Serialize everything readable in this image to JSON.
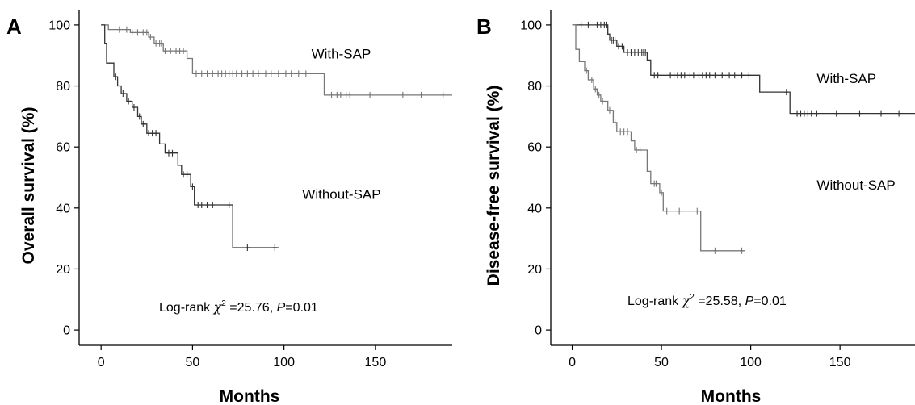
{
  "chart_data": [
    {
      "type": "line",
      "panel": "A",
      "xlabel": "Months",
      "ylabel": "Overall survival (%)",
      "xlim": [
        -12,
        192
      ],
      "ylim": [
        -5,
        105
      ],
      "xticks": [
        0,
        50,
        100,
        150
      ],
      "yticks": [
        0,
        20,
        40,
        60,
        80,
        100
      ],
      "grid": false,
      "stat_parts": {
        "prefix": "Log-rank ",
        "chi": "χ",
        "sup": "2",
        "value": " =25.76, ",
        "p": "P",
        "pvalue": "=0.01"
      },
      "series": [
        {
          "name": "With-SAP",
          "color": "#777777",
          "steps": [
            [
              0,
              100
            ],
            [
              4,
              100
            ],
            [
              4,
              98.5
            ],
            [
              16,
              98.5
            ],
            [
              16,
              97.5
            ],
            [
              26,
              97.5
            ],
            [
              26,
              96
            ],
            [
              29,
              96
            ],
            [
              29,
              94
            ],
            [
              34,
              94
            ],
            [
              34,
              91.5
            ],
            [
              47,
              91.5
            ],
            [
              47,
              89
            ],
            [
              50,
              89
            ],
            [
              50,
              84
            ],
            [
              122,
              84
            ],
            [
              122,
              77
            ],
            [
              192,
              77
            ]
          ],
          "censored": [
            [
              10,
              98.5
            ],
            [
              14,
              98.5
            ],
            [
              17,
              97.5
            ],
            [
              20,
              97.5
            ],
            [
              23,
              97.5
            ],
            [
              25,
              97.5
            ],
            [
              27,
              96
            ],
            [
              30,
              94
            ],
            [
              32,
              94
            ],
            [
              33,
              94
            ],
            [
              35,
              91.5
            ],
            [
              38,
              91.5
            ],
            [
              41,
              91.5
            ],
            [
              43,
              91.5
            ],
            [
              45,
              91.5
            ],
            [
              52,
              84
            ],
            [
              55,
              84
            ],
            [
              58,
              84
            ],
            [
              61,
              84
            ],
            [
              64,
              84
            ],
            [
              66,
              84
            ],
            [
              68,
              84
            ],
            [
              70,
              84
            ],
            [
              72,
              84
            ],
            [
              74,
              84
            ],
            [
              77,
              84
            ],
            [
              80,
              84
            ],
            [
              83,
              84
            ],
            [
              86,
              84
            ],
            [
              90,
              84
            ],
            [
              93,
              84
            ],
            [
              97,
              84
            ],
            [
              101,
              84
            ],
            [
              104,
              84
            ],
            [
              108,
              84
            ],
            [
              112,
              84
            ],
            [
              126,
              77
            ],
            [
              129,
              77
            ],
            [
              131,
              77
            ],
            [
              134,
              77
            ],
            [
              136,
              77
            ],
            [
              147,
              77
            ],
            [
              165,
              77
            ],
            [
              175,
              77
            ],
            [
              187,
              77
            ]
          ]
        },
        {
          "name": "Without-SAP",
          "color": "#333333",
          "steps": [
            [
              0,
              100
            ],
            [
              2,
              100
            ],
            [
              2,
              94
            ],
            [
              3,
              94
            ],
            [
              3,
              87.5
            ],
            [
              7,
              87.5
            ],
            [
              7,
              83
            ],
            [
              9,
              83
            ],
            [
              9,
              80
            ],
            [
              11,
              80
            ],
            [
              11,
              77.5
            ],
            [
              14,
              77.5
            ],
            [
              14,
              75
            ],
            [
              17,
              75
            ],
            [
              17,
              73
            ],
            [
              20,
              73
            ],
            [
              20,
              70
            ],
            [
              22,
              70
            ],
            [
              22,
              67.5
            ],
            [
              25,
              67.5
            ],
            [
              25,
              64.5
            ],
            [
              32,
              64.5
            ],
            [
              32,
              61
            ],
            [
              35,
              61
            ],
            [
              35,
              58
            ],
            [
              42,
              58
            ],
            [
              42,
              54
            ],
            [
              44,
              54
            ],
            [
              44,
              51
            ],
            [
              49,
              51
            ],
            [
              49,
              47
            ],
            [
              51,
              47
            ],
            [
              51,
              41
            ],
            [
              72,
              41
            ],
            [
              72,
              27
            ],
            [
              97,
              27
            ]
          ],
          "censored": [
            [
              8,
              83
            ],
            [
              12,
              77.5
            ],
            [
              15,
              75
            ],
            [
              18,
              73
            ],
            [
              21,
              70
            ],
            [
              23,
              67.5
            ],
            [
              26,
              64.5
            ],
            [
              28,
              64.5
            ],
            [
              30,
              64.5
            ],
            [
              37,
              58
            ],
            [
              39,
              58
            ],
            [
              45,
              51
            ],
            [
              47,
              51
            ],
            [
              50,
              47
            ],
            [
              53,
              41
            ],
            [
              55,
              41
            ],
            [
              58,
              41
            ],
            [
              61,
              41
            ],
            [
              70,
              41
            ],
            [
              80,
              27
            ],
            [
              95,
              27
            ]
          ]
        }
      ],
      "labels": [
        {
          "text": "With-SAP",
          "at": [
            115,
            89
          ]
        },
        {
          "text": "Without-SAP",
          "at": [
            110,
            43
          ]
        }
      ]
    },
    {
      "type": "line",
      "panel": "B",
      "xlabel": "Months",
      "ylabel": "Disease-free survival (%)",
      "xlim": [
        -12,
        192
      ],
      "ylim": [
        -5,
        105
      ],
      "xticks": [
        0,
        50,
        100,
        150
      ],
      "yticks": [
        0,
        20,
        40,
        60,
        80,
        100
      ],
      "grid": false,
      "stat_parts": {
        "prefix": "Log-rank ",
        "chi": "χ",
        "sup": "2",
        "value": " =25.58, ",
        "p": "P",
        "pvalue": "=0.01"
      },
      "series": [
        {
          "name": "With-SAP",
          "color": "#333333",
          "steps": [
            [
              0,
              100
            ],
            [
              20,
              100
            ],
            [
              20,
              97
            ],
            [
              21,
              97
            ],
            [
              21,
              95
            ],
            [
              25,
              95
            ],
            [
              25,
              93
            ],
            [
              29,
              93
            ],
            [
              29,
              91
            ],
            [
              42,
              91
            ],
            [
              42,
              88.5
            ],
            [
              44,
              88.5
            ],
            [
              44,
              83.5
            ],
            [
              105,
              83.5
            ],
            [
              105,
              78
            ],
            [
              122,
              78
            ],
            [
              122,
              71
            ],
            [
              192,
              71
            ]
          ],
          "censored": [
            [
              5,
              100
            ],
            [
              9,
              100
            ],
            [
              14,
              100
            ],
            [
              16,
              100
            ],
            [
              18,
              100
            ],
            [
              19,
              100
            ],
            [
              22,
              95
            ],
            [
              23,
              95
            ],
            [
              24,
              95
            ],
            [
              26,
              93
            ],
            [
              28,
              93
            ],
            [
              31,
              91
            ],
            [
              33,
              91
            ],
            [
              35,
              91
            ],
            [
              37,
              91
            ],
            [
              39,
              91
            ],
            [
              40,
              91
            ],
            [
              41,
              91
            ],
            [
              46,
              83.5
            ],
            [
              48,
              83.5
            ],
            [
              55,
              83.5
            ],
            [
              57,
              83.5
            ],
            [
              59,
              83.5
            ],
            [
              61,
              83.5
            ],
            [
              63,
              83.5
            ],
            [
              66,
              83.5
            ],
            [
              68,
              83.5
            ],
            [
              71,
              83.5
            ],
            [
              73,
              83.5
            ],
            [
              75,
              83.5
            ],
            [
              77,
              83.5
            ],
            [
              80,
              83.5
            ],
            [
              84,
              83.5
            ],
            [
              88,
              83.5
            ],
            [
              91,
              83.5
            ],
            [
              95,
              83.5
            ],
            [
              99,
              83.5
            ],
            [
              120,
              78
            ],
            [
              126,
              71
            ],
            [
              128,
              71
            ],
            [
              130,
              71
            ],
            [
              132,
              71
            ],
            [
              134,
              71
            ],
            [
              137,
              71
            ],
            [
              148,
              71
            ],
            [
              161,
              71
            ],
            [
              173,
              71
            ],
            [
              183,
              71
            ]
          ]
        },
        {
          "name": "Without-SAP",
          "color": "#777777",
          "steps": [
            [
              0,
              100
            ],
            [
              2,
              100
            ],
            [
              2,
              92
            ],
            [
              4,
              92
            ],
            [
              4,
              88
            ],
            [
              7,
              88
            ],
            [
              7,
              85
            ],
            [
              9,
              85
            ],
            [
              9,
              82
            ],
            [
              12,
              82
            ],
            [
              12,
              79
            ],
            [
              14,
              79
            ],
            [
              14,
              77
            ],
            [
              16,
              77
            ],
            [
              16,
              75
            ],
            [
              20,
              75
            ],
            [
              20,
              72
            ],
            [
              23,
              72
            ],
            [
              23,
              68
            ],
            [
              25,
              68
            ],
            [
              25,
              65
            ],
            [
              33,
              65
            ],
            [
              33,
              62
            ],
            [
              35,
              62
            ],
            [
              35,
              59
            ],
            [
              42,
              59
            ],
            [
              42,
              52
            ],
            [
              44,
              52
            ],
            [
              44,
              48
            ],
            [
              49,
              48
            ],
            [
              49,
              45
            ],
            [
              51,
              45
            ],
            [
              51,
              39
            ],
            [
              72,
              39
            ],
            [
              72,
              26
            ],
            [
              97,
              26
            ]
          ],
          "censored": [
            [
              8,
              85
            ],
            [
              11,
              82
            ],
            [
              13,
              79
            ],
            [
              15,
              77
            ],
            [
              17,
              75
            ],
            [
              21,
              72
            ],
            [
              24,
              68
            ],
            [
              27,
              65
            ],
            [
              29,
              65
            ],
            [
              31,
              65
            ],
            [
              36,
              59
            ],
            [
              38,
              59
            ],
            [
              46,
              48
            ],
            [
              47,
              48
            ],
            [
              50,
              45
            ],
            [
              53,
              39
            ],
            [
              60,
              39
            ],
            [
              70,
              39
            ],
            [
              80,
              26
            ],
            [
              95,
              26
            ]
          ]
        }
      ],
      "labels": [
        {
          "text": "With-SAP",
          "at": [
            137,
            81
          ]
        },
        {
          "text": "Without-SAP",
          "at": [
            137,
            46
          ]
        }
      ]
    }
  ]
}
